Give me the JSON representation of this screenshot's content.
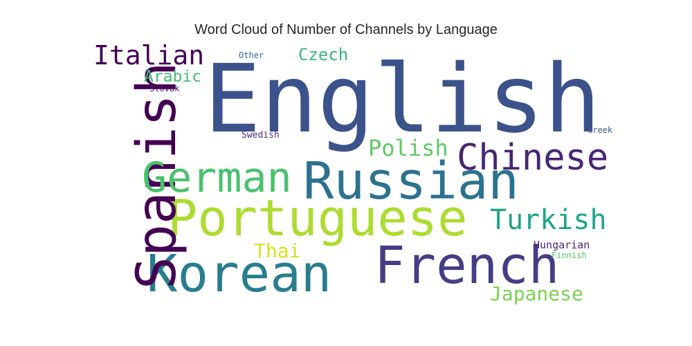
{
  "chart_data": {
    "type": "wordcloud",
    "title": "Word Cloud of Number of Channels by Language",
    "words": [
      {
        "text": "English",
        "color": "#3b528b"
      },
      {
        "text": "Russian",
        "color": "#2c728e"
      },
      {
        "text": "Portuguese",
        "color": "#addc30"
      },
      {
        "text": "Korean",
        "color": "#287d8e"
      },
      {
        "text": "French",
        "color": "#433e85"
      },
      {
        "text": "Spanish",
        "color": "#440154"
      },
      {
        "text": "German",
        "color": "#4ac16d"
      },
      {
        "text": "Chinese",
        "color": "#482576"
      },
      {
        "text": "Italian",
        "color": "#440154"
      },
      {
        "text": "Turkish",
        "color": "#20a486"
      },
      {
        "text": "Polish",
        "color": "#5ec962"
      },
      {
        "text": "Japanese",
        "color": "#7ad151"
      },
      {
        "text": "Czech",
        "color": "#35b779"
      },
      {
        "text": "Arabic",
        "color": "#3fbc73"
      },
      {
        "text": "Thai",
        "color": "#d8e219"
      },
      {
        "text": "Hungarian",
        "color": "#482878"
      },
      {
        "text": "Swedish",
        "color": "#472d7b"
      },
      {
        "text": "Slovak",
        "color": "#471365"
      },
      {
        "text": "Other",
        "color": "#31688e"
      },
      {
        "text": "Greek",
        "color": "#39568c"
      },
      {
        "text": "Finnish",
        "color": "#52c569"
      }
    ]
  }
}
